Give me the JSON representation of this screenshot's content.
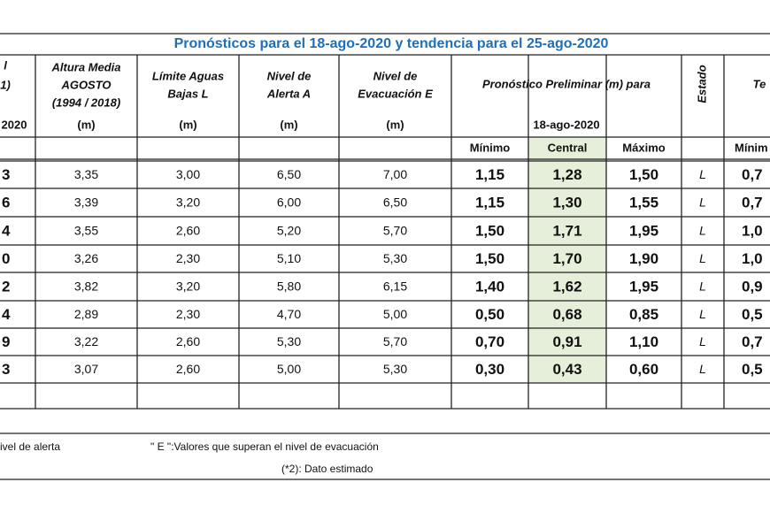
{
  "title": "Pronósticos para el 18-ago-2020 y tendencia para el 25-ago-2020",
  "columns": [
    {
      "label": [
        "l",
        "1)"
      ],
      "unit": "2020"
    },
    {
      "label": [
        "Altura Media",
        "AGOSTO",
        "(1994 / 2018)"
      ],
      "unit": "(m)"
    },
    {
      "label": [
        "Límite Aguas",
        "Bajas L"
      ],
      "unit": "(m)"
    },
    {
      "label": [
        "Nivel de",
        "Alerta A"
      ],
      "unit": "(m)"
    },
    {
      "label": [
        "Nivel de",
        "Evacuación E"
      ],
      "unit": "(m)"
    }
  ],
  "forecast": {
    "label": "Pronóstico Preliminar (m) para",
    "date": "18-ago-2020",
    "sub": [
      "Mínimo",
      "Central",
      "Máximo"
    ]
  },
  "estado": "Estado",
  "trend": {
    "label": "Te",
    "sub": "Mínim"
  },
  "rows": [
    [
      "3",
      "3,35",
      "3,00",
      "6,50",
      "7,00",
      "1,15",
      "1,28",
      "1,50",
      "L",
      "0,7"
    ],
    [
      "6",
      "3,39",
      "3,20",
      "6,00",
      "6,50",
      "1,15",
      "1,30",
      "1,55",
      "L",
      "0,7"
    ],
    [
      "4",
      "3,55",
      "2,60",
      "5,20",
      "5,70",
      "1,50",
      "1,71",
      "1,95",
      "L",
      "1,0"
    ],
    [
      "0",
      "3,26",
      "2,30",
      "5,10",
      "5,30",
      "1,50",
      "1,70",
      "1,90",
      "L",
      "1,0"
    ],
    [
      "2",
      "3,82",
      "3,20",
      "5,80",
      "6,15",
      "1,40",
      "1,62",
      "1,95",
      "L",
      "0,9"
    ],
    [
      "4",
      "2,89",
      "2,30",
      "4,70",
      "5,00",
      "0,50",
      "0,68",
      "0,85",
      "L",
      "0,5"
    ],
    [
      "9",
      "3,22",
      "2,60",
      "5,30",
      "5,70",
      "0,70",
      "0,91",
      "1,10",
      "L",
      "0,7"
    ],
    [
      "3",
      "3,07",
      "2,60",
      "5,00",
      "5,30",
      "0,30",
      "0,43",
      "0,60",
      "L",
      "0,5"
    ]
  ],
  "notes": [
    "ivel de alerta",
    "\" E \":Valores que superan el nivel de evacuación",
    "(*2): Dato estimado"
  ]
}
